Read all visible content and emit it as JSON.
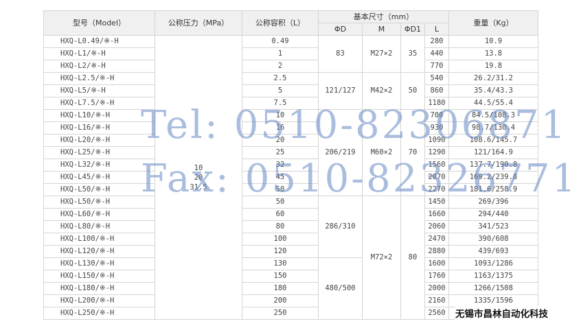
{
  "headers": {
    "model": "型号（Model）",
    "pressure": "公称压力（MPa）",
    "volume": "公称容积（L）",
    "dims": "基本尺寸（mm）",
    "D": "ΦD",
    "M": "M",
    "D1": "ΦD1",
    "L": "L",
    "weight": "重量（Kg）"
  },
  "pressure_values": [
    "10",
    "20",
    "31.5"
  ],
  "rows": [
    {
      "model": "HXQ-L0.49/※-H",
      "volume": "0.49",
      "L": "280",
      "weight": "10.9"
    },
    {
      "model": "HXQ-L1/※-H",
      "volume": "1",
      "L": "440",
      "weight": "13.8"
    },
    {
      "model": "HXQ-L2/※-H",
      "volume": "2",
      "L": "770",
      "weight": "19.8"
    },
    {
      "model": "HXQ-L2.5/※-H",
      "volume": "2.5",
      "L": "540",
      "weight": "26.2/31.2"
    },
    {
      "model": "HXQ-L5/※-H",
      "volume": "5",
      "L": "860",
      "weight": "35.4/43.3"
    },
    {
      "model": "HXQ-L7.5/※-H",
      "volume": "7.5",
      "L": "1180",
      "weight": "44.5/55.4"
    },
    {
      "model": "HXQ-L10/※-H",
      "volume": "10",
      "L": "700",
      "weight": "84.5/108.3"
    },
    {
      "model": "HXQ-L16/※-H",
      "volume": "16",
      "L": "930",
      "weight": "98.7/130.4"
    },
    {
      "model": "HXQ-L20/※-H",
      "volume": "20",
      "L": "1090",
      "weight": "108.6/145.7"
    },
    {
      "model": "HXQ-L25/※-H",
      "volume": "25",
      "L": "1290",
      "weight": "121/164.9"
    },
    {
      "model": "HXQ-L32/※-H",
      "volume": "32",
      "L": "1560",
      "weight": "137.7/190.8"
    },
    {
      "model": "HXQ-L45/※-H",
      "volume": "45",
      "L": "2070",
      "weight": "169.2/239.8"
    },
    {
      "model": "HXQ-L50/※-H",
      "volume": "50",
      "L": "2270",
      "weight": "181.6/258.9"
    },
    {
      "model": "HXQ-L50/※-H",
      "volume": "50",
      "L": "1450",
      "weight": "269/396"
    },
    {
      "model": "HXQ-L60/※-H",
      "volume": "60",
      "L": "1660",
      "weight": "294/440"
    },
    {
      "model": "HXQ-L80/※-H",
      "volume": "80",
      "L": "2060",
      "weight": "341/523"
    },
    {
      "model": "HXQ-L100/※-H",
      "volume": "100",
      "L": "2470",
      "weight": "390/608"
    },
    {
      "model": "HXQ-L120/※-H",
      "volume": "120",
      "L": "2880",
      "weight": "439/693"
    },
    {
      "model": "HXQ-L130/※-H",
      "volume": "130",
      "L": "1600",
      "weight": "1093/1286"
    },
    {
      "model": "HXQ-L150/※-H",
      "volume": "150",
      "L": "1760",
      "weight": "1163/1375"
    },
    {
      "model": "HXQ-L180/※-H",
      "volume": "180",
      "L": "2000",
      "weight": "1266/1508"
    },
    {
      "model": "HXQ-L200/※-H",
      "volume": "200",
      "L": "2160",
      "weight": "1335/1596"
    },
    {
      "model": "HXQ-L250/※-H",
      "volume": "250",
      "L": "2560",
      "weight": ""
    }
  ],
  "D_groups": [
    {
      "value": "83",
      "span": 3
    },
    {
      "value": "121/127",
      "span": 3
    },
    {
      "value": "206/219",
      "span": 7
    },
    {
      "value": "286/310",
      "span": 5
    },
    {
      "value": "480/500",
      "span": 5
    }
  ],
  "M_groups": [
    {
      "value": "M27×2",
      "span": 3
    },
    {
      "value": "M42×2",
      "span": 3
    },
    {
      "value": "M60×2",
      "span": 7
    },
    {
      "value": "M72×2",
      "span": 10
    }
  ],
  "D1_groups": [
    {
      "value": "35",
      "span": 3
    },
    {
      "value": "50",
      "span": 3
    },
    {
      "value": "70",
      "span": 7
    },
    {
      "value": "80",
      "span": 10
    }
  ],
  "watermark": {
    "tel": "Tel: 0510-82306871",
    "fax": "Fax: 0510-82326771"
  },
  "company": "无锡市昌林自动化科技"
}
